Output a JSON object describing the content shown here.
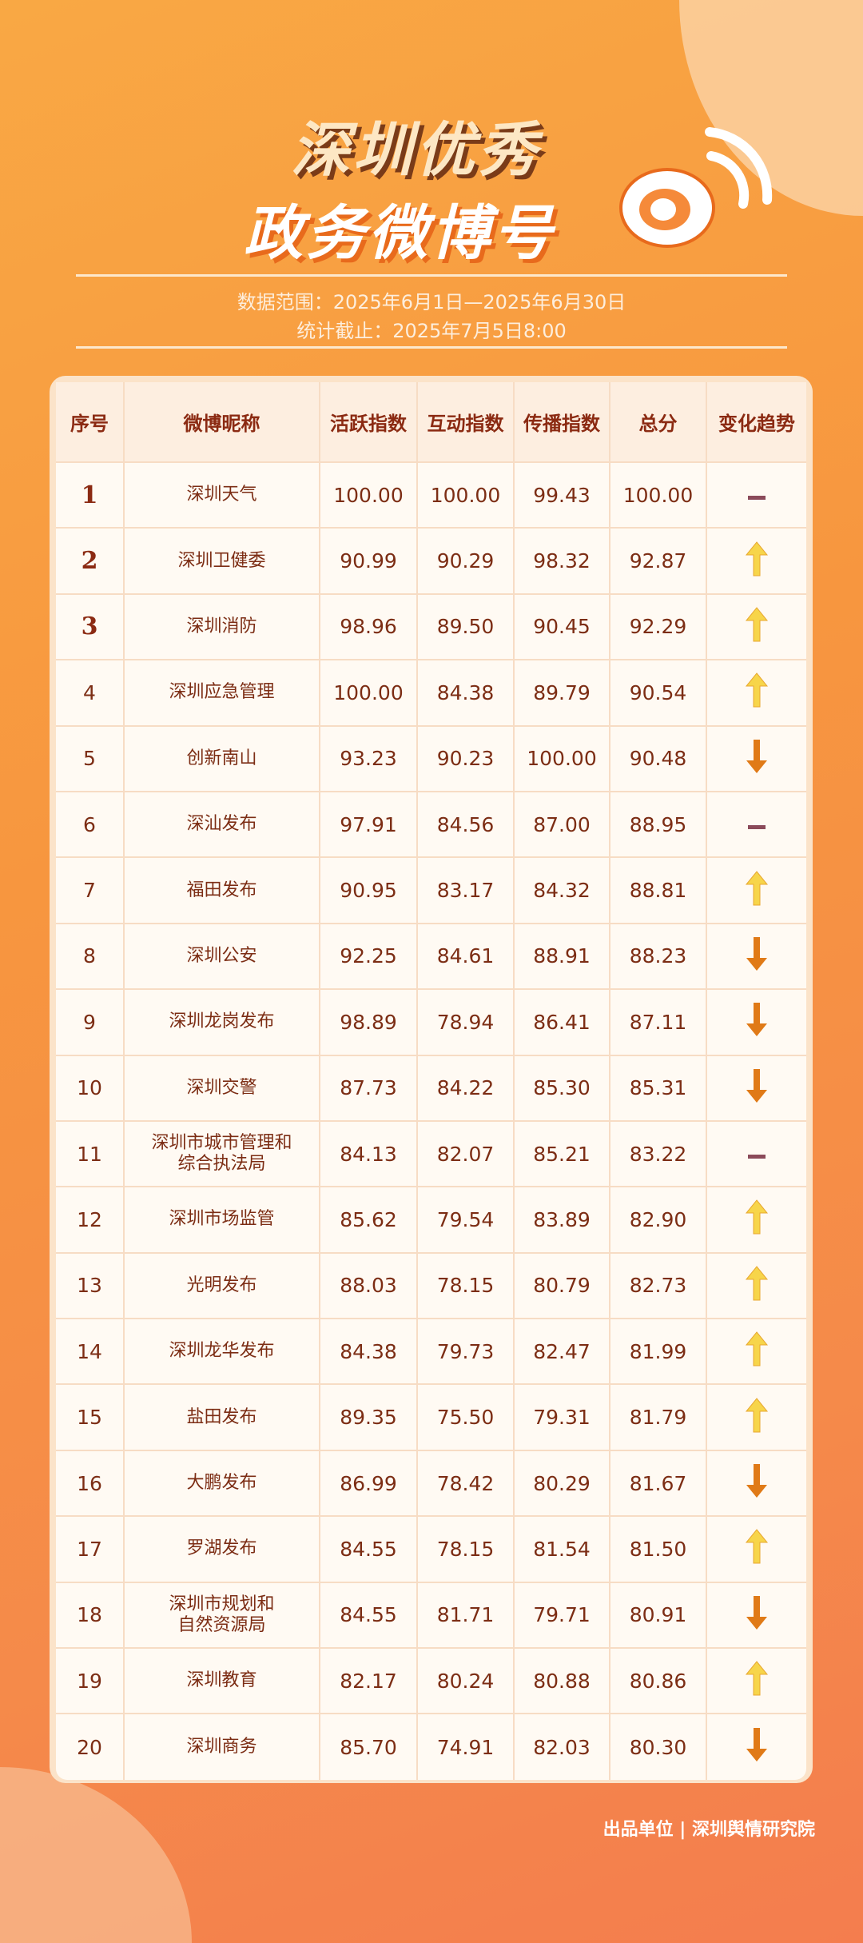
{
  "title_line1": "深圳优秀",
  "title_line2": "政务微博号",
  "date_range": "数据范围：2025年6月1日—2025年6月30日",
  "cutoff": "统计截止：2025年7月5日8:00",
  "columns": [
    "序号",
    "微博昵称",
    "活跃指数",
    "互动指数",
    "传播指数",
    "总分",
    "变化趋势"
  ],
  "trend_colors": {
    "up": "#f7d54a",
    "down": "#e07a17",
    "same": "#8b4a5a"
  },
  "rows": [
    [
      "1",
      "深圳天气",
      "100.00",
      "100.00",
      "99.43",
      "100.00",
      "same"
    ],
    [
      "2",
      "深圳卫健委",
      "90.99",
      "90.29",
      "98.32",
      "92.87",
      "up"
    ],
    [
      "3",
      "深圳消防",
      "98.96",
      "89.50",
      "90.45",
      "92.29",
      "up"
    ],
    [
      "4",
      "深圳应急管理",
      "100.00",
      "84.38",
      "89.79",
      "90.54",
      "up"
    ],
    [
      "5",
      "创新南山",
      "93.23",
      "90.23",
      "100.00",
      "90.48",
      "down"
    ],
    [
      "6",
      "深汕发布",
      "97.91",
      "84.56",
      "87.00",
      "88.95",
      "same"
    ],
    [
      "7",
      "福田发布",
      "90.95",
      "83.17",
      "84.32",
      "88.81",
      "up"
    ],
    [
      "8",
      "深圳公安",
      "92.25",
      "84.61",
      "88.91",
      "88.23",
      "down"
    ],
    [
      "9",
      "深圳龙岗发布",
      "98.89",
      "78.94",
      "86.41",
      "87.11",
      "down"
    ],
    [
      "10",
      "深圳交警",
      "87.73",
      "84.22",
      "85.30",
      "85.31",
      "down"
    ],
    [
      "11",
      "深圳市城市管理和综合执法局",
      "84.13",
      "82.07",
      "85.21",
      "83.22",
      "same"
    ],
    [
      "12",
      "深圳市场监管",
      "85.62",
      "79.54",
      "83.89",
      "82.90",
      "up"
    ],
    [
      "13",
      "光明发布",
      "88.03",
      "78.15",
      "80.79",
      "82.73",
      "up"
    ],
    [
      "14",
      "深圳龙华发布",
      "84.38",
      "79.73",
      "82.47",
      "81.99",
      "up"
    ],
    [
      "15",
      "盐田发布",
      "89.35",
      "75.50",
      "79.31",
      "81.79",
      "up"
    ],
    [
      "16",
      "大鹏发布",
      "86.99",
      "78.42",
      "80.29",
      "81.67",
      "down"
    ],
    [
      "17",
      "罗湖发布",
      "84.55",
      "78.15",
      "81.54",
      "81.50",
      "up"
    ],
    [
      "18",
      "深圳市规划和自然资源局",
      "84.55",
      "81.71",
      "79.71",
      "80.91",
      "down"
    ],
    [
      "19",
      "深圳教育",
      "82.17",
      "80.24",
      "80.88",
      "80.86",
      "up"
    ],
    [
      "20",
      "深圳商务",
      "85.70",
      "74.91",
      "82.03",
      "80.30",
      "down"
    ]
  ],
  "footer": "出品单位 | 深圳舆情研究院"
}
